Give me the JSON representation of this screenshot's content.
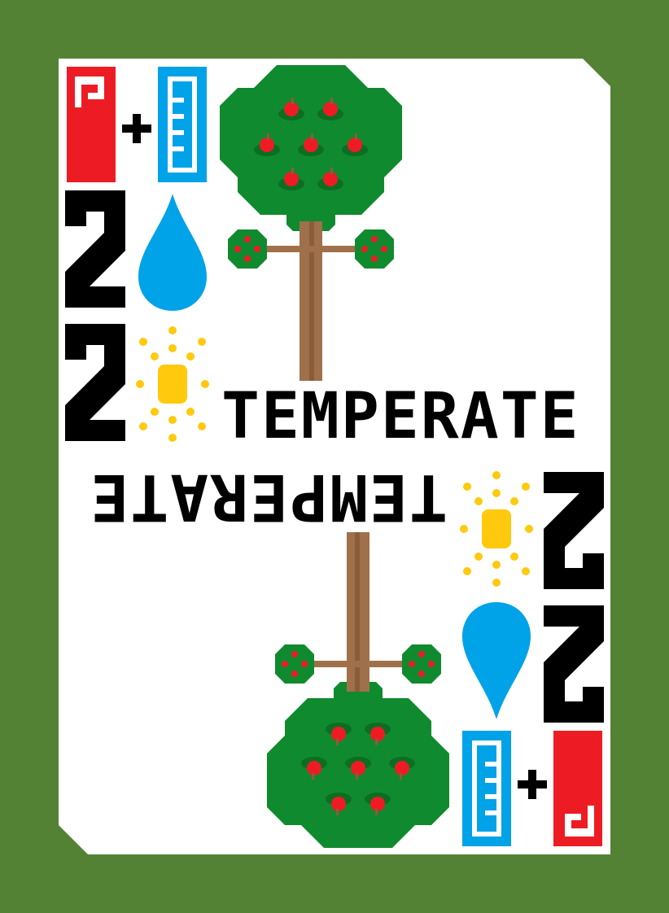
{
  "card": {
    "name": "TEMPERATE",
    "water_requirement": "2",
    "sun_requirement": "2",
    "combo_symbols": [
      "heat-gauge-icon",
      "+",
      "cold-gauge-icon"
    ],
    "plant": "apple-tree-icon"
  },
  "colors": {
    "background": "#548235",
    "card": "#ffffff",
    "heat": "#ed1c24",
    "cold": "#00a2e8",
    "water": "#00a2e8",
    "sun": "#ffc90e",
    "leaf": "#108a2e",
    "leaf_shadow": "#0b6e22",
    "fruit": "#ed1c24",
    "trunk": "#a0704a",
    "trunk_dark": "#8a5d3a",
    "text": "#000000"
  }
}
